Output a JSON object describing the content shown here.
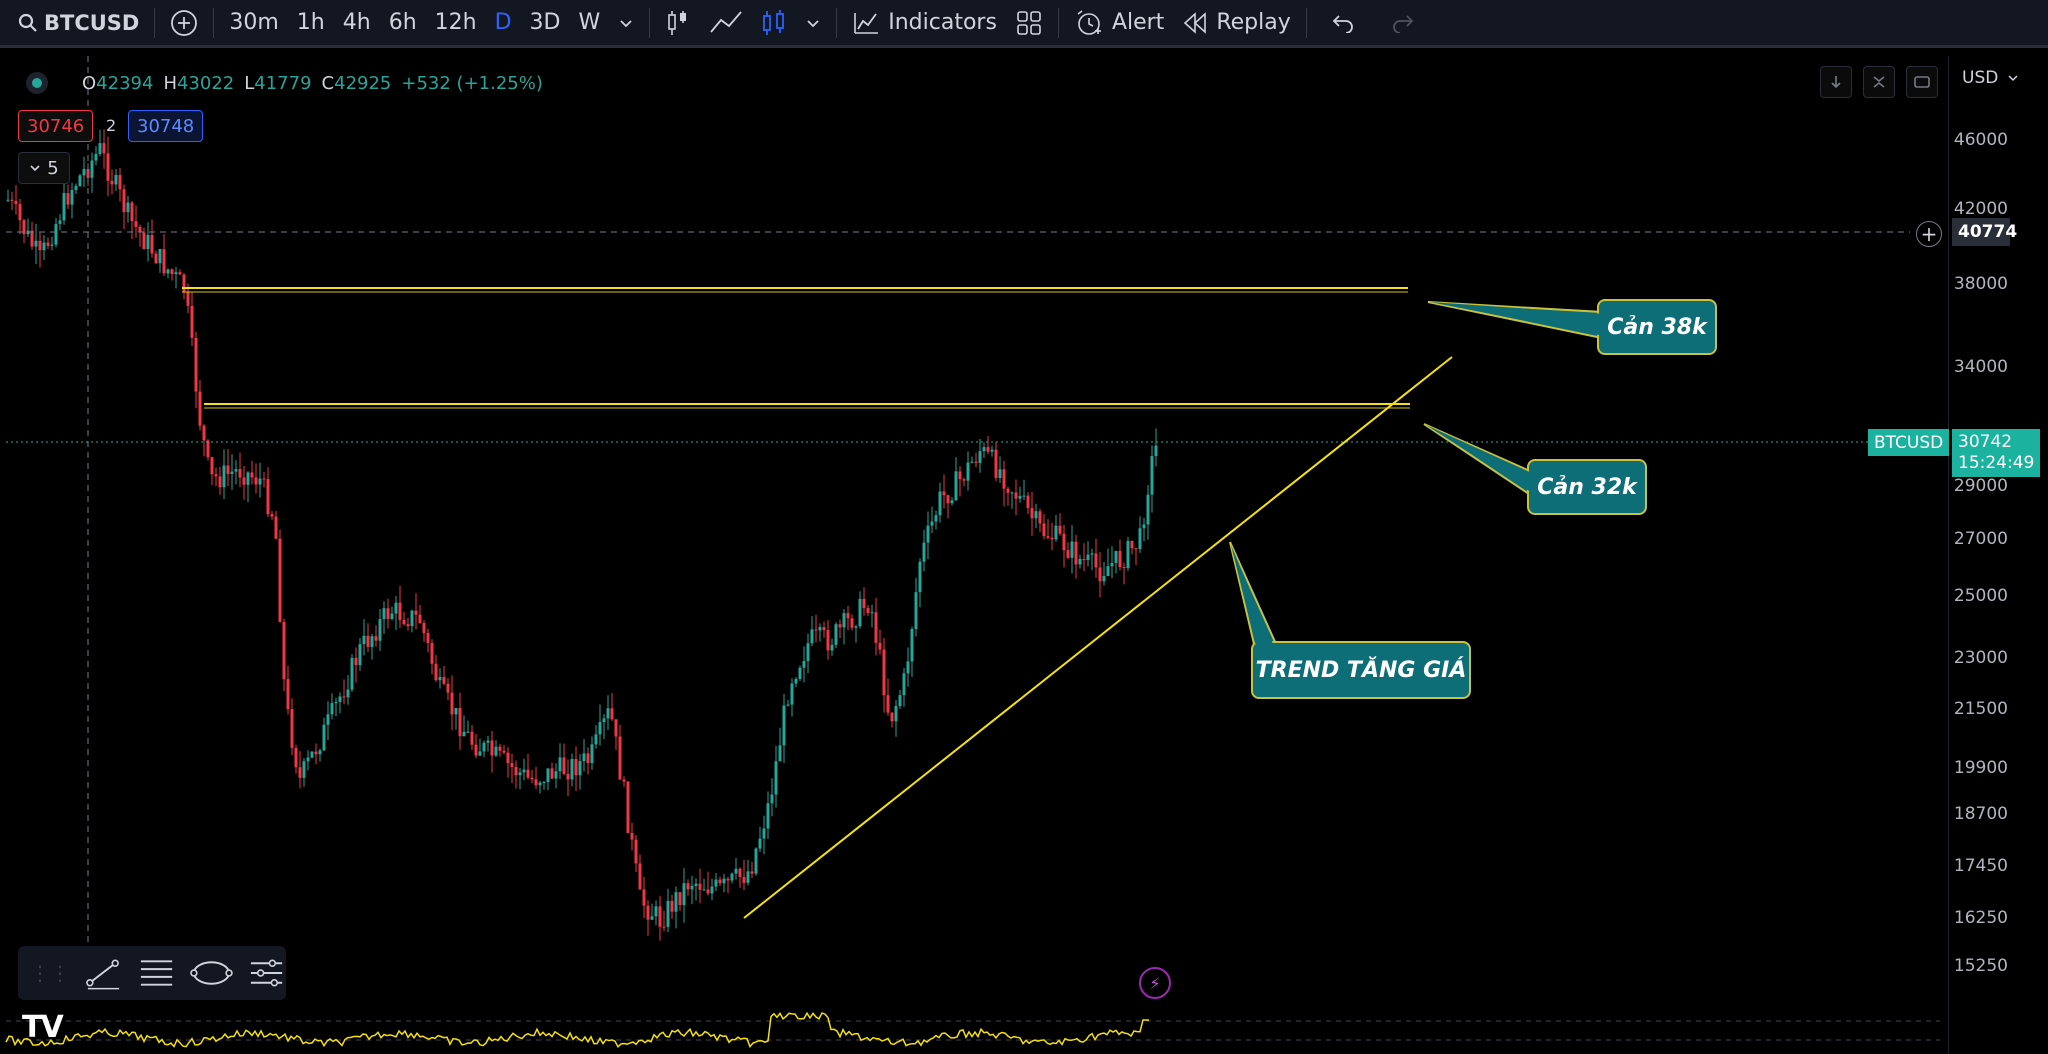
{
  "toolbar": {
    "symbol": "BTCUSD",
    "intervals": [
      "30m",
      "1h",
      "4h",
      "6h",
      "12h",
      "D",
      "3D",
      "W"
    ],
    "active_interval": "D",
    "indicators_label": "Indicators",
    "alert_label": "Alert",
    "replay_label": "Replay",
    "icons": [
      "search-icon",
      "add-symbol-icon",
      "chevron-down-icon",
      "bar-style-icon",
      "line-style-icon",
      "candles-icon",
      "layout-grid-icon",
      "alarm-clock-icon",
      "replay-icon",
      "undo-icon",
      "redo-icon"
    ]
  },
  "legend": {
    "open_key": "O",
    "open": "42394",
    "high_key": "H",
    "high": "43022",
    "low_key": "L",
    "low": "41779",
    "close_key": "C",
    "close": "42925",
    "change": "+532 (+1.25%)"
  },
  "trade": {
    "sell_price": "30746",
    "spread": "2",
    "buy_price": "30748"
  },
  "collapse": {
    "count": "5"
  },
  "axis": {
    "currency": "USD",
    "ticks": [
      "46000",
      "42000",
      "38000",
      "34000",
      "29000",
      "27000",
      "25000",
      "23000",
      "21500",
      "19900",
      "18700",
      "17450",
      "16250",
      "15250"
    ]
  },
  "crosshair": {
    "price": "40774"
  },
  "current": {
    "symbol": "BTCUSD",
    "price": "30742",
    "countdown": "15:24:49"
  },
  "annotations": {
    "resistance_38k": "Cản 38k",
    "resistance_32k": "Cản 32k",
    "uptrend": "TREND TĂNG GIÁ"
  },
  "colors": {
    "up": "#26a69a",
    "down": "#f23645",
    "drawing": "#f5e10c",
    "callout_fill": "#0d6e78",
    "callout_border": "#c9c23a",
    "accent": "#2962ff"
  },
  "branding": {
    "logo": "TV"
  }
}
